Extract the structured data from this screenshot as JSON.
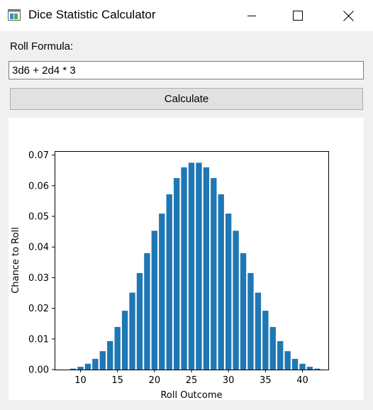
{
  "window": {
    "title": "Dice Statistic Calculator"
  },
  "form": {
    "formula_label": "Roll Formula:",
    "formula_value": "3d6 + 2d4 * 3",
    "calculate_label": "Calculate"
  },
  "colors": {
    "bar": "#1f77b4",
    "background": "#f0f0f0"
  },
  "chart_data": {
    "type": "bar",
    "xlabel": "Roll Outcome",
    "ylabel": "Chance to Roll",
    "xlim": [
      6.5,
      43.5
    ],
    "ylim": [
      0,
      0.0713
    ],
    "xticks": [
      10,
      15,
      20,
      25,
      30,
      35,
      40
    ],
    "yticks": [
      0.0,
      0.01,
      0.02,
      0.03,
      0.04,
      0.05,
      0.06,
      0.07
    ],
    "ytick_labels": [
      "0.00",
      "0.01",
      "0.02",
      "0.03",
      "0.04",
      "0.05",
      "0.06",
      "0.07"
    ],
    "x": [
      9,
      10,
      11,
      12,
      13,
      14,
      15,
      16,
      17,
      18,
      19,
      20,
      21,
      22,
      23,
      24,
      25,
      26,
      27,
      28,
      29,
      30,
      31,
      32,
      33,
      34,
      35,
      36,
      37,
      38,
      39,
      40,
      41,
      42
    ],
    "values": [
      0.0003,
      0.0009,
      0.0019,
      0.0035,
      0.006,
      0.0093,
      0.0139,
      0.0192,
      0.0251,
      0.0315,
      0.038,
      0.0453,
      0.0509,
      0.0572,
      0.0625,
      0.066,
      0.0675,
      0.0675,
      0.066,
      0.0625,
      0.0572,
      0.0509,
      0.0453,
      0.038,
      0.0315,
      0.0251,
      0.0192,
      0.0139,
      0.0093,
      0.006,
      0.0035,
      0.0019,
      0.0009,
      0.0003
    ]
  }
}
